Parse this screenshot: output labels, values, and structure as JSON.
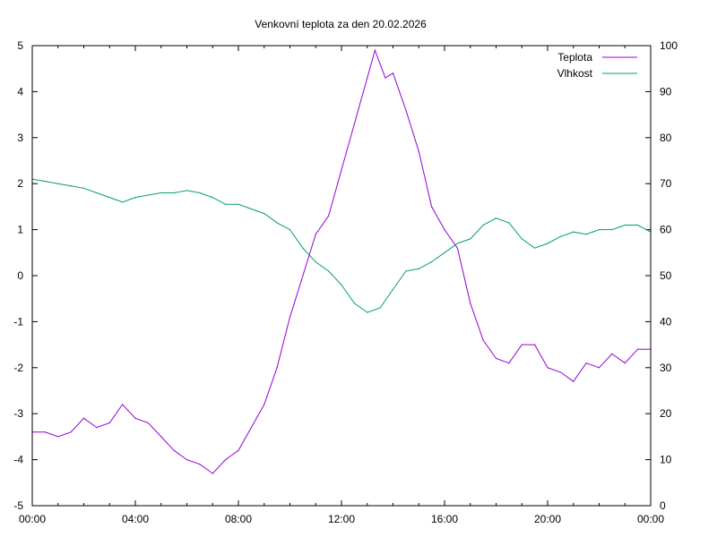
{
  "chart_data": {
    "type": "line",
    "title": "Venkovní teplota za den 20.02.2026",
    "xlabel": "",
    "ylabel": "",
    "y2label": "",
    "x_unit": "hours",
    "xlim": [
      0,
      24
    ],
    "ylim": [
      -5,
      5
    ],
    "y2lim": [
      0,
      100
    ],
    "grid": false,
    "legend_position": "top-right",
    "x_ticks": [
      "00:00",
      "04:00",
      "08:00",
      "12:00",
      "16:00",
      "20:00",
      "00:00"
    ],
    "y_ticks": [
      "-5",
      "-4",
      "-3",
      "-2",
      "-1",
      "0",
      "1",
      "2",
      "3",
      "4",
      "5"
    ],
    "y2_ticks": [
      "0",
      "10",
      "20",
      "30",
      "40",
      "50",
      "60",
      "70",
      "80",
      "90",
      "100"
    ],
    "series": [
      {
        "name": "Teplota",
        "axis": "left",
        "color": "#9400d3",
        "x": [
          0,
          0.5,
          1,
          1.5,
          2,
          2.5,
          3,
          3.5,
          4,
          4.5,
          5,
          5.5,
          6,
          6.5,
          7,
          7.5,
          8,
          8.5,
          9,
          9.5,
          10,
          10.5,
          11,
          11.5,
          12,
          12.5,
          13,
          13.3,
          13.7,
          14,
          14.5,
          15,
          15.5,
          16,
          16.5,
          17,
          17.5,
          18,
          18.5,
          19,
          19.5,
          20,
          20.5,
          21,
          21.5,
          22,
          22.5,
          23,
          23.5,
          24
        ],
        "values": [
          -3.4,
          -3.4,
          -3.5,
          -3.4,
          -3.1,
          -3.3,
          -3.2,
          -2.8,
          -3.1,
          -3.2,
          -3.5,
          -3.8,
          -4.0,
          -4.1,
          -4.3,
          -4.0,
          -3.8,
          -3.3,
          -2.8,
          -2.0,
          -0.9,
          0.0,
          0.9,
          1.3,
          2.3,
          3.3,
          4.3,
          4.9,
          4.3,
          4.4,
          3.6,
          2.7,
          1.5,
          1.0,
          0.6,
          -0.6,
          -1.4,
          -1.8,
          -1.9,
          -1.5,
          -1.5,
          -2.0,
          -2.1,
          -2.3,
          -1.9,
          -2.0,
          -1.7,
          -1.9,
          -1.6,
          -1.6
        ]
      },
      {
        "name": "Vlhkost",
        "axis": "right",
        "color": "#009e73",
        "x": [
          0,
          0.5,
          1,
          1.5,
          2,
          2.5,
          3,
          3.5,
          4,
          4.5,
          5,
          5.5,
          6,
          6.5,
          7,
          7.5,
          8,
          8.5,
          9,
          9.5,
          10,
          10.5,
          11,
          11.5,
          12,
          12.5,
          13,
          13.5,
          14,
          14.5,
          15,
          15.5,
          16,
          16.5,
          17,
          17.5,
          18,
          18.5,
          19,
          19.5,
          20,
          20.5,
          21,
          21.5,
          22,
          22.5,
          23,
          23.5,
          24
        ],
        "values": [
          71,
          70.5,
          70,
          69.5,
          69,
          68,
          67,
          66,
          67,
          67.5,
          68,
          68,
          68.5,
          68,
          67,
          65.5,
          65.5,
          64.5,
          63.5,
          61.5,
          60,
          56,
          53,
          51,
          48,
          44,
          42,
          43,
          47,
          51,
          51.5,
          53,
          55,
          57,
          58,
          61,
          62.5,
          61.5,
          58,
          56,
          57,
          58.5,
          59.5,
          59,
          60,
          60,
          61,
          61,
          59.5
        ]
      }
    ]
  }
}
